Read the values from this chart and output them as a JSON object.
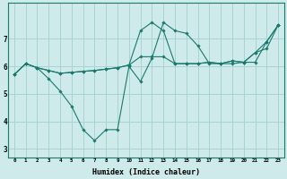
{
  "xlabel": "Humidex (Indice chaleur)",
  "background_color": "#ceeaea",
  "grid_color": "#a8d4d4",
  "line_color": "#1a7a6e",
  "xlim": [
    -0.5,
    23.5
  ],
  "ylim": [
    2.7,
    8.3
  ],
  "xtick_labels": [
    "0",
    "1",
    "2",
    "3",
    "4",
    "5",
    "6",
    "7",
    "8",
    "9",
    "10",
    "11",
    "12",
    "13",
    "14",
    "15",
    "16",
    "17",
    "18",
    "19",
    "20",
    "21",
    "22",
    "23"
  ],
  "ytick_values": [
    3,
    4,
    5,
    6,
    7
  ],
  "line1_x": [
    0,
    1,
    2,
    3,
    4,
    5,
    6,
    7,
    8,
    9,
    10,
    11,
    12,
    13,
    14,
    15,
    16,
    17,
    18,
    19,
    20,
    21,
    22,
    23
  ],
  "line1_y": [
    5.7,
    6.1,
    5.95,
    5.55,
    5.1,
    4.55,
    3.7,
    3.3,
    3.7,
    3.7,
    6.0,
    5.45,
    6.3,
    7.6,
    7.3,
    7.2,
    6.75,
    6.1,
    6.1,
    6.1,
    6.15,
    6.5,
    6.9,
    7.5
  ],
  "line2_x": [
    0,
    1,
    2,
    3,
    4,
    5,
    6,
    7,
    8,
    9,
    10,
    11,
    12,
    13,
    14,
    15,
    16,
    17,
    18,
    19,
    20,
    21,
    22,
    23
  ],
  "line2_y": [
    5.7,
    6.1,
    5.95,
    5.85,
    5.75,
    5.78,
    5.82,
    5.85,
    5.9,
    5.95,
    6.05,
    6.35,
    6.35,
    6.35,
    6.1,
    6.1,
    6.1,
    6.15,
    6.1,
    6.2,
    6.15,
    6.5,
    6.65,
    7.5
  ],
  "line3_x": [
    0,
    1,
    2,
    3,
    4,
    5,
    6,
    7,
    8,
    9,
    10,
    11,
    12,
    13,
    14,
    15,
    16,
    17,
    18,
    19,
    20,
    21,
    22,
    23
  ],
  "line3_y": [
    5.7,
    6.1,
    5.95,
    5.85,
    5.75,
    5.78,
    5.82,
    5.85,
    5.9,
    5.95,
    6.05,
    7.3,
    7.6,
    7.3,
    6.1,
    6.1,
    6.1,
    6.15,
    6.1,
    6.2,
    6.15,
    6.15,
    6.9,
    7.5
  ]
}
